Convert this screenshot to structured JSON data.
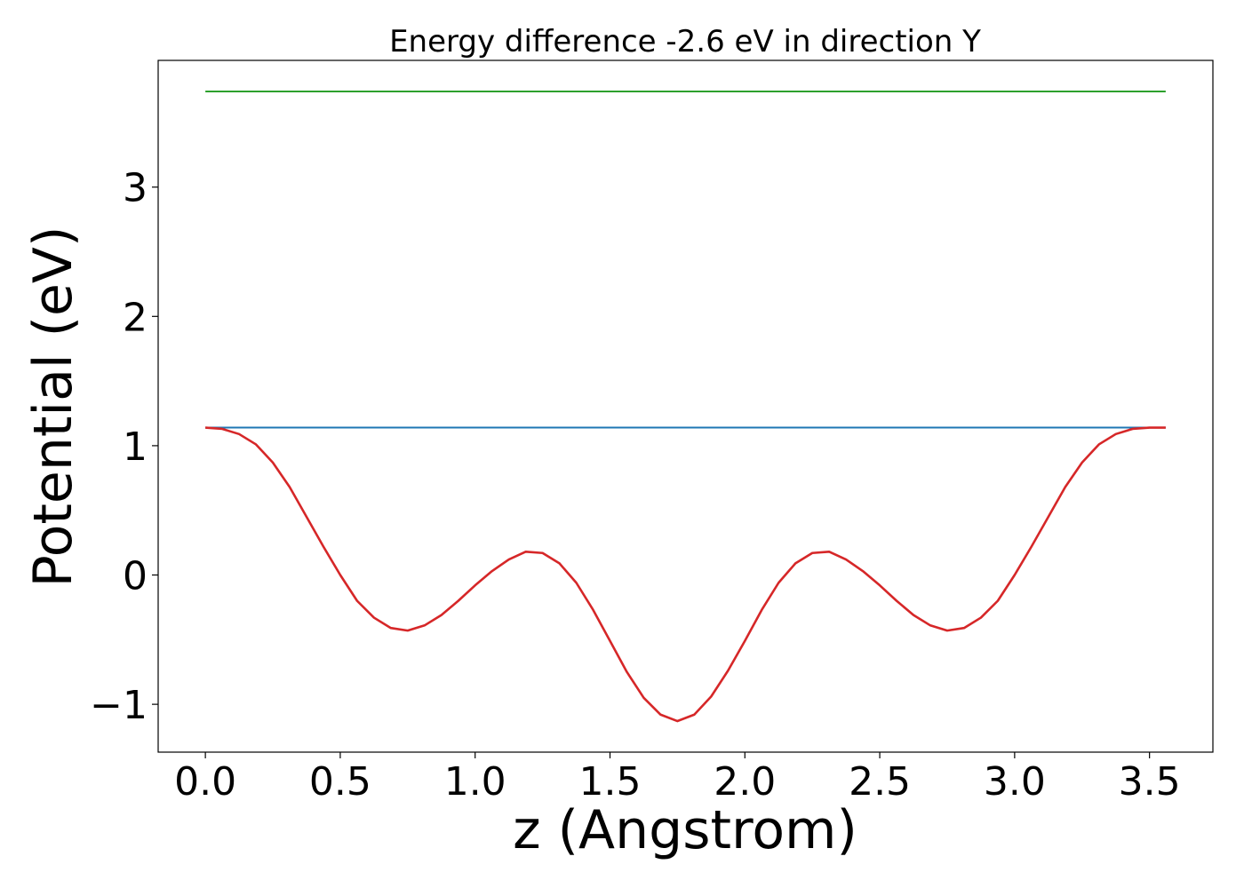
{
  "chart_data": {
    "type": "line",
    "title": "Energy difference -2.6 eV in direction Y",
    "xlabel": "z (Angstrom)",
    "ylabel": "Potential (eV)",
    "xlim": [
      -0.175,
      3.735
    ],
    "ylim": [
      -1.37,
      3.98
    ],
    "grid": false,
    "xticks": [
      0.0,
      0.5,
      1.0,
      1.5,
      2.0,
      2.5,
      3.0,
      3.5
    ],
    "xtick_labels": [
      "0.0",
      "0.5",
      "1.0",
      "1.5",
      "2.0",
      "2.5",
      "3.0",
      "3.5"
    ],
    "yticks": [
      -1,
      0,
      1,
      2,
      3
    ],
    "ytick_labels": [
      "−1",
      "0",
      "1",
      "2",
      "3"
    ],
    "series": [
      {
        "color": "#2ca02c",
        "x": [
          0.0,
          3.56
        ],
        "y": [
          3.74,
          3.74
        ]
      },
      {
        "color": "#1f77b4",
        "x": [
          0.0,
          3.56
        ],
        "y": [
          1.14,
          1.14
        ]
      },
      {
        "color": "#d62728",
        "x": [
          0.0,
          0.0625,
          0.125,
          0.1875,
          0.25,
          0.3125,
          0.375,
          0.4375,
          0.5,
          0.5625,
          0.625,
          0.6875,
          0.75,
          0.8125,
          0.875,
          0.9375,
          1.0,
          1.0625,
          1.125,
          1.1875,
          1.25,
          1.3125,
          1.375,
          1.4375,
          1.5,
          1.5625,
          1.625,
          1.6875,
          1.75,
          1.8125,
          1.875,
          1.9375,
          2.0,
          2.0625,
          2.125,
          2.1875,
          2.25,
          2.3125,
          2.375,
          2.4375,
          2.5,
          2.5625,
          2.625,
          2.6875,
          2.75,
          2.8125,
          2.875,
          2.9375,
          3.0,
          3.0625,
          3.125,
          3.1875,
          3.25,
          3.3125,
          3.375,
          3.4375,
          3.5,
          3.56
        ],
        "y": [
          1.14,
          1.13,
          1.09,
          1.01,
          0.87,
          0.68,
          0.45,
          0.22,
          0.0,
          -0.2,
          -0.33,
          -0.41,
          -0.43,
          -0.39,
          -0.31,
          -0.2,
          -0.08,
          0.03,
          0.12,
          0.18,
          0.17,
          0.09,
          -0.06,
          -0.27,
          -0.51,
          -0.75,
          -0.95,
          -1.08,
          -1.13,
          -1.08,
          -0.94,
          -0.74,
          -0.51,
          -0.27,
          -0.06,
          0.09,
          0.17,
          0.18,
          0.12,
          0.03,
          -0.08,
          -0.2,
          -0.31,
          -0.39,
          -0.43,
          -0.41,
          -0.33,
          -0.2,
          0.0,
          0.22,
          0.45,
          0.68,
          0.87,
          1.01,
          1.09,
          1.13,
          1.14,
          1.14
        ]
      }
    ]
  }
}
